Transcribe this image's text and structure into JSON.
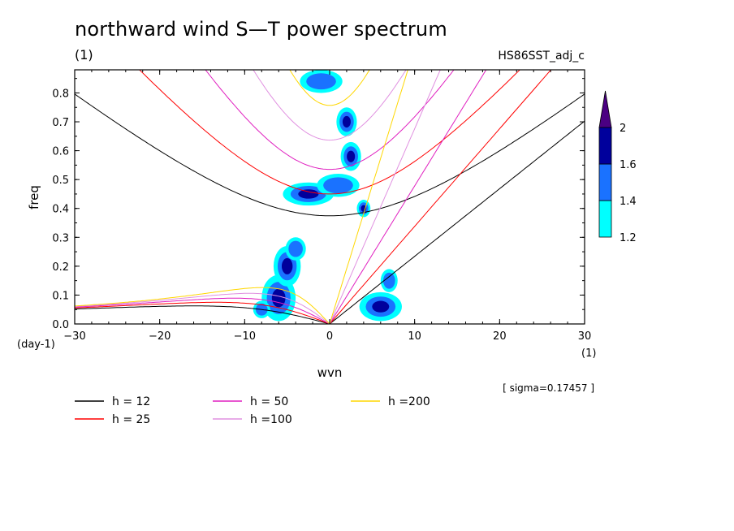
{
  "header": {
    "title": "northward wind S—T power spectrum",
    "unit": "(1)",
    "experiment": "HS86SST_adj_c"
  },
  "chart_data": {
    "type": "contour",
    "xlabel": "wvn",
    "ylabel": "freq",
    "x_unit": "(1)",
    "y_unit": "(day-1)",
    "xlim": [
      -30,
      30
    ],
    "ylim": [
      0,
      0.88
    ],
    "xticks": [
      -30,
      -20,
      -10,
      0,
      10,
      20,
      30
    ],
    "yticks": [
      0.0,
      0.1,
      0.2,
      0.3,
      0.4,
      0.5,
      0.6,
      0.7,
      0.8
    ],
    "annotation": "[ sigma=0.17457 ]",
    "colorbar": {
      "levels": [
        1.2,
        1.4,
        1.6,
        2
      ],
      "colors": [
        "#00ffff",
        "#1a72ff",
        "#00009c",
        "#4b0082"
      ]
    },
    "shading_blobs": [
      {
        "x": -6.0,
        "y": 0.09,
        "rx": 2.0,
        "ry": 0.08,
        "level": 2
      },
      {
        "x": -5.0,
        "y": 0.2,
        "rx": 1.6,
        "ry": 0.07,
        "level": 2
      },
      {
        "x": -4.0,
        "y": 0.26,
        "rx": 1.2,
        "ry": 0.04,
        "level": 1
      },
      {
        "x": -2.5,
        "y": 0.45,
        "rx": 3.0,
        "ry": 0.04,
        "level": 2
      },
      {
        "x": 1.0,
        "y": 0.48,
        "rx": 2.5,
        "ry": 0.04,
        "level": 1
      },
      {
        "x": 2.5,
        "y": 0.58,
        "rx": 1.2,
        "ry": 0.05,
        "level": 2
      },
      {
        "x": 2.0,
        "y": 0.7,
        "rx": 1.2,
        "ry": 0.05,
        "level": 2
      },
      {
        "x": -1.0,
        "y": 0.84,
        "rx": 2.5,
        "ry": 0.04,
        "level": 1
      },
      {
        "x": 4.0,
        "y": 0.4,
        "rx": 0.8,
        "ry": 0.03,
        "level": 2
      },
      {
        "x": 6.0,
        "y": 0.06,
        "rx": 2.5,
        "ry": 0.05,
        "level": 2
      },
      {
        "x": 7.0,
        "y": 0.15,
        "rx": 1.0,
        "ry": 0.04,
        "level": 1
      },
      {
        "x": -8.0,
        "y": 0.05,
        "rx": 1.0,
        "ry": 0.03,
        "level": 1
      }
    ],
    "series": [
      {
        "name": "h = 12",
        "h": 12,
        "color": "#000000"
      },
      {
        "name": "h = 25",
        "h": 25,
        "color": "#ff0000"
      },
      {
        "name": "h = 50",
        "h": 50,
        "color": "#e020c0"
      },
      {
        "name": "h =100",
        "h": 100,
        "color": "#e090e0"
      },
      {
        "name": "h =200",
        "h": 200,
        "color": "#ffd700"
      }
    ]
  }
}
